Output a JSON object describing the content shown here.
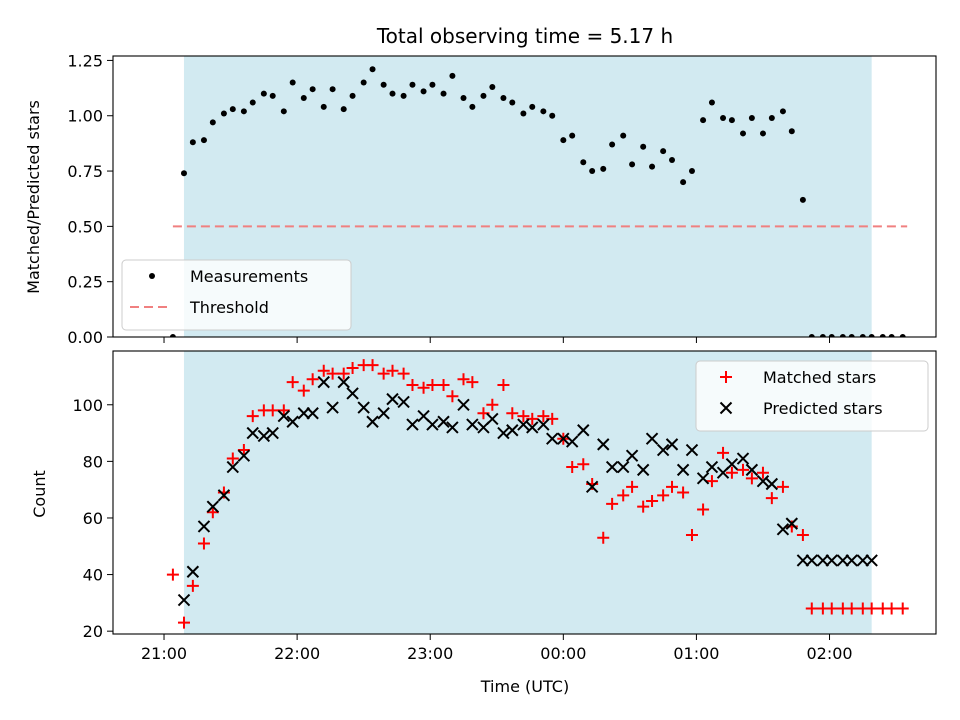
{
  "chart_data": [
    {
      "type": "scatter",
      "title": "Total observing time = 5.17 h",
      "ylabel": "Matched/Predicted stars",
      "ylim": [
        0,
        1.27
      ],
      "yticks": [
        0.0,
        0.25,
        0.5,
        0.75,
        1.0,
        1.25
      ],
      "ytick_labels": [
        "0.00",
        "0.25",
        "0.50",
        "0.75",
        "1.00",
        "1.25"
      ],
      "xlim": [
        "20:37",
        "02:48"
      ],
      "xticks": [
        "21:00",
        "22:00",
        "23:00",
        "00:00",
        "01:00",
        "02:00"
      ],
      "shaded_region": {
        "start": "21:09",
        "end": "02:19",
        "color": "#add8e6"
      },
      "threshold": {
        "label": "Threshold",
        "value": 0.5,
        "x_start": "21:04",
        "x_end": "02:35",
        "color": "#f08080"
      },
      "legend_position": "lower-left",
      "series": [
        {
          "name": "Measurements",
          "color": "#000000",
          "x": [
            "21:04",
            "21:09",
            "21:13",
            "21:18",
            "21:22",
            "21:27",
            "21:31",
            "21:36",
            "21:40",
            "21:45",
            "21:49",
            "21:54",
            "21:58",
            "22:03",
            "22:07",
            "22:12",
            "22:16",
            "22:21",
            "22:25",
            "22:30",
            "22:34",
            "22:39",
            "22:43",
            "22:48",
            "22:52",
            "22:57",
            "23:01",
            "23:06",
            "23:10",
            "23:15",
            "23:19",
            "23:24",
            "23:28",
            "23:33",
            "23:37",
            "23:42",
            "23:46",
            "23:51",
            "23:55",
            "00:00",
            "00:04",
            "00:09",
            "00:13",
            "00:18",
            "00:22",
            "00:27",
            "00:31",
            "00:36",
            "00:40",
            "00:45",
            "00:49",
            "00:54",
            "00:58",
            "01:03",
            "01:07",
            "01:12",
            "01:16",
            "01:21",
            "01:25",
            "01:30",
            "01:34",
            "01:39",
            "01:43",
            "01:48",
            "01:52",
            "01:57",
            "02:01",
            "02:06",
            "02:10",
            "02:15",
            "02:19",
            "02:24",
            "02:28",
            "02:33"
          ],
          "y": [
            0.0,
            0.74,
            0.88,
            0.89,
            0.97,
            1.01,
            1.03,
            1.02,
            1.06,
            1.1,
            1.09,
            1.02,
            1.15,
            1.08,
            1.12,
            1.04,
            1.12,
            1.03,
            1.09,
            1.15,
            1.21,
            1.14,
            1.1,
            1.09,
            1.14,
            1.11,
            1.14,
            1.1,
            1.18,
            1.08,
            1.04,
            1.09,
            1.13,
            1.08,
            1.06,
            1.01,
            1.04,
            1.02,
            1.0,
            0.89,
            0.91,
            0.79,
            0.75,
            0.76,
            0.87,
            0.91,
            0.78,
            0.86,
            0.77,
            0.84,
            0.8,
            0.7,
            0.75,
            0.98,
            1.06,
            0.99,
            0.98,
            0.92,
            0.99,
            0.92,
            0.99,
            1.02,
            0.93,
            0.62,
            0.0,
            0.0,
            0.0,
            0.0,
            0.0,
            0.0,
            0.0,
            0.0,
            0.0,
            0.0
          ]
        }
      ]
    },
    {
      "type": "scatter",
      "xlabel": "Time (UTC)",
      "ylabel": "Count",
      "ylim": [
        19,
        119
      ],
      "yticks": [
        20,
        40,
        60,
        80,
        100
      ],
      "ytick_labels": [
        "20",
        "40",
        "60",
        "80",
        "100"
      ],
      "xlim": [
        "20:37",
        "02:48"
      ],
      "xticks": [
        "21:00",
        "22:00",
        "23:00",
        "00:00",
        "01:00",
        "02:00"
      ],
      "xtick_labels": [
        "21:00",
        "22:00",
        "23:00",
        "00:00",
        "01:00",
        "02:00"
      ],
      "shaded_region": {
        "start": "21:09",
        "end": "02:19",
        "color": "#add8e6"
      },
      "legend_position": "top-right",
      "series": [
        {
          "name": "Matched stars",
          "marker": "+",
          "color": "#ff0000",
          "x": [
            "21:04",
            "21:09",
            "21:13",
            "21:18",
            "21:22",
            "21:27",
            "21:31",
            "21:36",
            "21:40",
            "21:45",
            "21:49",
            "21:54",
            "21:58",
            "22:03",
            "22:07",
            "22:12",
            "22:16",
            "22:21",
            "22:25",
            "22:30",
            "22:34",
            "22:39",
            "22:43",
            "22:48",
            "22:52",
            "22:57",
            "23:01",
            "23:06",
            "23:10",
            "23:15",
            "23:19",
            "23:24",
            "23:28",
            "23:33",
            "23:37",
            "23:42",
            "23:46",
            "23:51",
            "23:55",
            "00:00",
            "00:04",
            "00:09",
            "00:13",
            "00:18",
            "00:22",
            "00:27",
            "00:31",
            "00:36",
            "00:40",
            "00:45",
            "00:49",
            "00:54",
            "00:58",
            "01:03",
            "01:07",
            "01:12",
            "01:16",
            "01:21",
            "01:25",
            "01:30",
            "01:34",
            "01:39",
            "01:43",
            "01:48",
            "01:52",
            "01:57",
            "02:01",
            "02:06",
            "02:10",
            "02:15",
            "02:19",
            "02:24",
            "02:28",
            "02:33"
          ],
          "y": [
            40,
            23,
            36,
            51,
            62,
            69,
            81,
            84,
            96,
            98,
            98,
            98,
            108,
            105,
            109,
            112,
            111,
            111,
            113,
            114,
            114,
            111,
            112,
            111,
            107,
            106,
            107,
            107,
            103,
            109,
            108,
            97,
            100,
            107,
            97,
            96,
            95,
            96,
            95,
            88,
            78,
            79,
            72,
            53,
            65,
            68,
            71,
            64,
            66,
            68,
            71,
            69,
            54,
            63,
            73,
            83,
            76,
            77,
            74,
            76,
            67,
            71,
            57,
            54,
            28,
            28,
            28,
            28,
            28,
            28,
            28,
            28,
            28,
            28
          ]
        },
        {
          "name": "Predicted stars",
          "marker": "x",
          "color": "#000000",
          "x": [
            "21:09",
            "21:13",
            "21:18",
            "21:22",
            "21:27",
            "21:31",
            "21:36",
            "21:40",
            "21:45",
            "21:49",
            "21:54",
            "21:58",
            "22:03",
            "22:07",
            "22:12",
            "22:16",
            "22:21",
            "22:25",
            "22:30",
            "22:34",
            "22:39",
            "22:43",
            "22:48",
            "22:52",
            "22:57",
            "23:01",
            "23:06",
            "23:10",
            "23:15",
            "23:19",
            "23:24",
            "23:28",
            "23:33",
            "23:37",
            "23:42",
            "23:46",
            "23:51",
            "23:55",
            "00:00",
            "00:04",
            "00:09",
            "00:13",
            "00:18",
            "00:22",
            "00:27",
            "00:31",
            "00:36",
            "00:40",
            "00:45",
            "00:49",
            "00:54",
            "00:58",
            "01:03",
            "01:07",
            "01:12",
            "01:16",
            "01:21",
            "01:25",
            "01:30",
            "01:34",
            "01:39",
            "01:43",
            "01:48",
            "01:52",
            "01:57",
            "02:01",
            "02:06",
            "02:10",
            "02:15",
            "02:19"
          ],
          "y": [
            31,
            41,
            57,
            64,
            68,
            78,
            82,
            90,
            89,
            90,
            96,
            94,
            97,
            97,
            108,
            99,
            108,
            104,
            99,
            94,
            97,
            102,
            101,
            93,
            96,
            93,
            94,
            92,
            100,
            93,
            92,
            95,
            90,
            91,
            93,
            92,
            93,
            88,
            88,
            87,
            91,
            71,
            86,
            78,
            78,
            82,
            77,
            88,
            84,
            86,
            77,
            84,
            74,
            78,
            76,
            79,
            81,
            77,
            73,
            72,
            56,
            58,
            45,
            45,
            45,
            45,
            45,
            45,
            45,
            45
          ]
        }
      ]
    }
  ]
}
